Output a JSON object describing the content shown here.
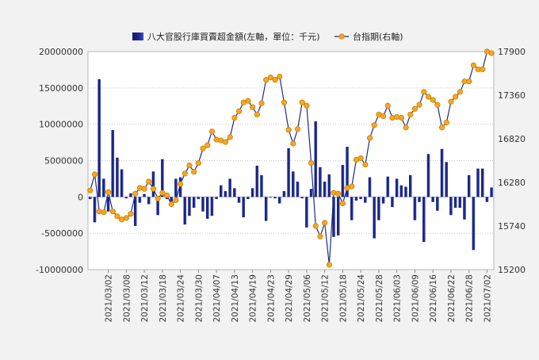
{
  "chart_data": {
    "type": "bar+line",
    "legend_position": "top-center",
    "grid": "horizontal-dotted",
    "legend": [
      {
        "label": "八大官股行庫買賣超金額(左軸，單位：千元)",
        "kind": "bar"
      },
      {
        "label": "台指期(右軸)",
        "kind": "line"
      }
    ],
    "left_axis": {
      "ylim": [
        -10000000,
        20000000
      ],
      "ticks": [
        -10000000,
        -5000000,
        0,
        5000000,
        10000000,
        15000000,
        20000000
      ],
      "tick_labels": [
        "-10000000",
        "-5000000",
        "0",
        "5000000",
        "10000000",
        "15000000",
        "20000000"
      ]
    },
    "right_axis": {
      "ylim": [
        15200,
        17900
      ],
      "ticks": [
        15200,
        15740,
        16280,
        16820,
        17360,
        17900
      ],
      "tick_labels": [
        "15200",
        "15740",
        "16280",
        "16820",
        "17360",
        "17900"
      ]
    },
    "x_tick_labels": [
      {
        "index": 4,
        "label": "2021/03/02"
      },
      {
        "index": 8,
        "label": "2021/03/08"
      },
      {
        "index": 12,
        "label": "2021/03/12"
      },
      {
        "index": 16,
        "label": "2021/03/18"
      },
      {
        "index": 20,
        "label": "2021/03/24"
      },
      {
        "index": 24,
        "label": "2021/03/30"
      },
      {
        "index": 28,
        "label": "2021/04/07"
      },
      {
        "index": 32,
        "label": "2021/04/13"
      },
      {
        "index": 36,
        "label": "2021/04/19"
      },
      {
        "index": 40,
        "label": "2021/04/23"
      },
      {
        "index": 44,
        "label": "2021/04/29"
      },
      {
        "index": 48,
        "label": "2021/05/06"
      },
      {
        "index": 52,
        "label": "2021/05/12"
      },
      {
        "index": 56,
        "label": "2021/05/18"
      },
      {
        "index": 60,
        "label": "2021/05/24"
      },
      {
        "index": 64,
        "label": "2021/05/28"
      },
      {
        "index": 68,
        "label": "2021/06/03"
      },
      {
        "index": 72,
        "label": "2021/06/09"
      },
      {
        "index": 76,
        "label": "2021/06/16"
      },
      {
        "index": 80,
        "label": "2021/06/22"
      },
      {
        "index": 84,
        "label": "2021/06/28"
      },
      {
        "index": 88,
        "label": "2021/07/02"
      }
    ],
    "series": [
      {
        "kind": "bar",
        "axis": "left",
        "color": "#1f2a8c",
        "values": [
          -300000,
          -3500000,
          16200000,
          2500000,
          -2000000,
          9200000,
          5400000,
          3800000,
          -200000,
          500000,
          -4000000,
          -800000,
          400000,
          -1000000,
          3500000,
          -2500000,
          5200000,
          -300000,
          -1000000,
          2500000,
          2700000,
          -3800000,
          -2600000,
          -1500000,
          -300000,
          -2000000,
          -3000000,
          -2600000,
          -300000,
          1600000,
          800000,
          2500000,
          1200000,
          -800000,
          -2800000,
          -300000,
          1200000,
          4300000,
          3000000,
          -3300000,
          -100000,
          -200000,
          -900000,
          800000,
          6700000,
          3500000,
          2100000,
          -200000,
          -4200000,
          1100000,
          10400000,
          4100000,
          2100000,
          3100000,
          -5500000,
          -5300000,
          4400000,
          6900000,
          -3200000,
          -500000,
          -300000,
          -800000,
          2700000,
          -5700000,
          -3200000,
          -900000,
          2800000,
          -1400000,
          2500000,
          1600000,
          1400000,
          3000000,
          -3200000,
          -700000,
          -6200000,
          5900000,
          -700000,
          -1900000,
          6600000,
          4800000,
          -2500000,
          -1500000,
          -1500000,
          -3100000,
          3000000,
          -7300000,
          3900000,
          3900000,
          -700000,
          1300000
        ]
      },
      {
        "kind": "line",
        "axis": "right",
        "color": "#1f2a8c",
        "marker_color": "#f5a623",
        "values": [
          16180,
          16380,
          15920,
          15910,
          16160,
          15920,
          15860,
          15820,
          15840,
          15890,
          16140,
          16210,
          16200,
          16290,
          16200,
          16080,
          16150,
          16120,
          16010,
          16060,
          16260,
          16390,
          16490,
          16410,
          16520,
          16700,
          16740,
          16910,
          16810,
          16800,
          16780,
          16840,
          17080,
          17160,
          17270,
          17290,
          17210,
          17120,
          17260,
          17550,
          17580,
          17550,
          17590,
          17270,
          16930,
          16760,
          16940,
          17270,
          17230,
          16520,
          15740,
          15610,
          15780,
          15260,
          16150,
          16140,
          16020,
          16210,
          16230,
          16560,
          16580,
          16500,
          16830,
          16990,
          17120,
          17100,
          17230,
          17080,
          17090,
          17080,
          16960,
          17120,
          17190,
          17240,
          17400,
          17340,
          17300,
          17240,
          16960,
          17020,
          17280,
          17340,
          17400,
          17530,
          17530,
          17730,
          17680,
          17680,
          17900,
          17880
        ]
      }
    ]
  }
}
